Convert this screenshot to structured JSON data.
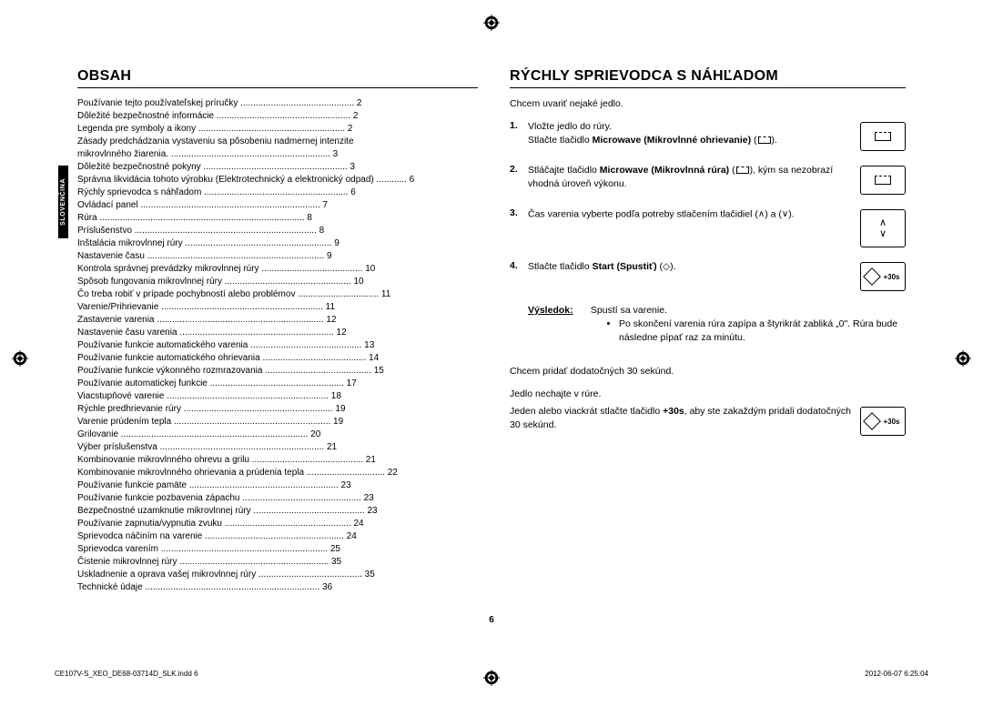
{
  "sidebar_tab": "SLOVENČINA",
  "left": {
    "heading": "OBSAH",
    "toc": [
      {
        "label": "Používanie tejto používateľskej príručky",
        "page": "2"
      },
      {
        "label": "Dôležité bezpečnostné informácie",
        "page": "2"
      },
      {
        "label": "Legenda pre symboly a ikony",
        "page": "2"
      },
      {
        "label": "Zásady predchádzania vystaveniu sa pôsobeniu nadmernej intenzite mikrovlnného žiarenia.",
        "page": "3",
        "wrap": true
      },
      {
        "label": "Dôležité bezpečnostné pokyny",
        "page": "3"
      },
      {
        "label": "Správna likvidácia tohoto výrobku (Elektrotechnický a elektronický odpad)",
        "page": "6"
      },
      {
        "label": "Rýchly sprievodca s náhľadom",
        "page": "6"
      },
      {
        "label": "Ovládací panel",
        "page": "7"
      },
      {
        "label": "Rúra",
        "page": "8"
      },
      {
        "label": "Príslušenstvo",
        "page": "8"
      },
      {
        "label": "Inštalácia mikrovlnnej rúry",
        "page": "9"
      },
      {
        "label": "Nastavenie času",
        "page": "9"
      },
      {
        "label": "Kontrola správnej prevádzky mikrovlnnej rúry",
        "page": "10"
      },
      {
        "label": "Spôsob fungovania mikrovlnnej rúry",
        "page": "10"
      },
      {
        "label": "Čo treba robiť v prípade pochybností alebo problémov",
        "page": "11"
      },
      {
        "label": "Varenie/Prihrievanie",
        "page": "11"
      },
      {
        "label": "Zastavenie varenia",
        "page": "12"
      },
      {
        "label": "Nastavenie času varenia",
        "page": "12"
      },
      {
        "label": "Používanie funkcie automatického varenia",
        "page": "13"
      },
      {
        "label": "Používanie funkcie automatického ohrievania",
        "page": "14"
      },
      {
        "label": "Používanie funkcie výkonného rozmrazovania",
        "page": "15"
      },
      {
        "label": "Používanie automatickej funkcie",
        "page": "17"
      },
      {
        "label": "Viacstupňové varenie",
        "page": "18"
      },
      {
        "label": "Rýchle predhrievanie rúry",
        "page": "19"
      },
      {
        "label": "Varenie prúdením tepla",
        "page": "19"
      },
      {
        "label": "Grilovanie",
        "page": "20"
      },
      {
        "label": "Výber príslušenstva",
        "page": "21"
      },
      {
        "label": "Kombinovanie mikrovlnného ohrevu a grilu",
        "page": "21"
      },
      {
        "label": "Kombinovanie mikrovlnného ohrievania a prúdenia tepla",
        "page": "22"
      },
      {
        "label": "Používanie funkcie pamäte",
        "page": "23"
      },
      {
        "label": "Používanie funkcie pozbavenia zápachu",
        "page": "23"
      },
      {
        "label": "Bezpečnostné uzamknutie mikrovlnnej rúry",
        "page": "23"
      },
      {
        "label": "Používanie zapnutia/vypnutia zvuku",
        "page": "24"
      },
      {
        "label": "Sprievodca náčiním na varenie",
        "page": "24"
      },
      {
        "label": "Sprievodca varením",
        "page": "25"
      },
      {
        "label": "Čistenie mikrovlnnej rúry",
        "page": "35"
      },
      {
        "label": "Uskladnenie a oprava vašej mikrovlnnej rúry",
        "page": "35"
      },
      {
        "label": "Technické údaje",
        "page": "36"
      }
    ]
  },
  "right": {
    "heading": "RÝCHLY SPRIEVODCA S NÁHĽADOM",
    "intro1": "Chcem uvariť nejaké jedlo.",
    "s1": {
      "n": "1.",
      "t": "Vložte jedlo do rúry.<br>Stlačte tlačidlo <b>Microwave (Mikrovlnné ohrievanie)</b> (<span class=\"inline-icon\"></span>)."
    },
    "s2": {
      "n": "2.",
      "t": "Stláčajte tlačidlo <b>Microwave (Mikrovlnná rúra)</b> (<span class=\"inline-icon\"></span>), kým sa nezobrazí vhodná úroveň výkonu."
    },
    "s3": {
      "n": "3.",
      "t": "Čas varenia vyberte podľa potreby stlačením tlačidiel (<span class=\"inline-arrow\">∧</span>) a (<span class=\"inline-arrow\">∨</span>)."
    },
    "s4": {
      "n": "4.",
      "t": "Stlačte tlačidlo <b>Start (Spustiť)</b> (◇)."
    },
    "result_label": "Výsledok:",
    "result_text": "Spustí sa varenie.",
    "result_b1": "Po skončení varenia rúra zapípa a štyrikrát zabliká „0\". Rúra bude následne pípať raz za minútu.",
    "intro2": "Chcem pridať dodatočných 30 sekúnd.",
    "p2a": "Jedlo nechajte v rúre.",
    "p2b": "Jeden alebo viackrát stlačte tlačidlo <b>+30s</b>, aby ste zakaždým pridali dodatočných 30 sekúnd.",
    "plus30": "+30s"
  },
  "footer": {
    "file": "CE107V-S_XEO_DE68-03714D_SLK.indd   6",
    "date": "2012-06-07   6:25:04",
    "page": "6"
  }
}
